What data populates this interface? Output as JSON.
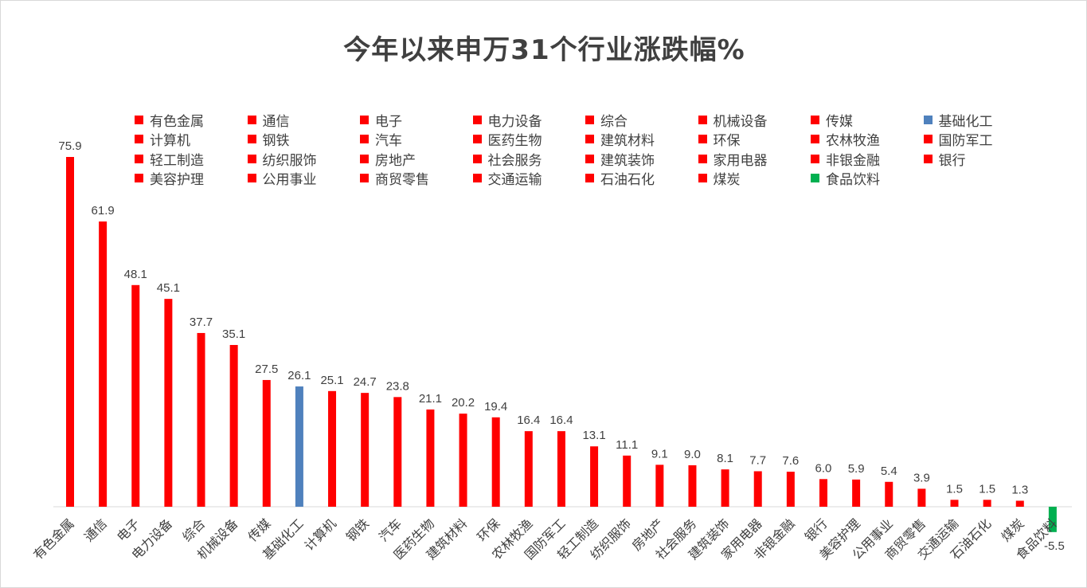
{
  "title": "今年以来申万31个行业涨跌幅%",
  "colors": {
    "positive": "#ff0000",
    "highlight": "#4f81bd",
    "negative": "#00b050",
    "text": "#404040",
    "axis": "#d9d9d9"
  },
  "chart_data": {
    "type": "bar",
    "title": "今年以来申万31个行业涨跌幅%",
    "xlabel": "",
    "ylabel": "",
    "legend_position": "top",
    "grid": false,
    "categories": [
      "有色金属",
      "通信",
      "电子",
      "电力设备",
      "综合",
      "机械设备",
      "传媒",
      "基础化工",
      "计算机",
      "钢铁",
      "汽车",
      "医药生物",
      "建筑材料",
      "环保",
      "农林牧渔",
      "国防军工",
      "轻工制造",
      "纺织服饰",
      "房地产",
      "社会服务",
      "建筑装饰",
      "家用电器",
      "非银金融",
      "银行",
      "美容护理",
      "公用事业",
      "商贸零售",
      "交通运输",
      "石油石化",
      "煤炭",
      "食品饮料"
    ],
    "values": [
      75.9,
      61.9,
      48.1,
      45.1,
      37.7,
      35.1,
      27.5,
      26.1,
      25.1,
      24.7,
      23.8,
      21.1,
      20.2,
      19.4,
      16.4,
      16.4,
      13.1,
      11.1,
      9.1,
      9.0,
      8.1,
      7.7,
      7.6,
      6.0,
      5.9,
      5.4,
      3.9,
      1.5,
      1.5,
      1.3,
      -5.5
    ],
    "value_labels": [
      "75.9",
      "61.9",
      "48.1",
      "45.1",
      "37.7",
      "35.1",
      "27.5",
      "26.1",
      "25.1",
      "24.7",
      "23.8",
      "21.1",
      "20.2",
      "19.4",
      "16.4",
      "16.4",
      "13.1",
      "11.1",
      "9.1",
      "9.0",
      "8.1",
      "7.7",
      "7.6",
      "6.0",
      "5.9",
      "5.4",
      "3.9",
      "1.5",
      "1.5",
      "1.3",
      "-5.5"
    ],
    "bar_colors": [
      "#ff0000",
      "#ff0000",
      "#ff0000",
      "#ff0000",
      "#ff0000",
      "#ff0000",
      "#ff0000",
      "#4f81bd",
      "#ff0000",
      "#ff0000",
      "#ff0000",
      "#ff0000",
      "#ff0000",
      "#ff0000",
      "#ff0000",
      "#ff0000",
      "#ff0000",
      "#ff0000",
      "#ff0000",
      "#ff0000",
      "#ff0000",
      "#ff0000",
      "#ff0000",
      "#ff0000",
      "#ff0000",
      "#ff0000",
      "#ff0000",
      "#ff0000",
      "#ff0000",
      "#ff0000",
      "#00b050"
    ]
  }
}
